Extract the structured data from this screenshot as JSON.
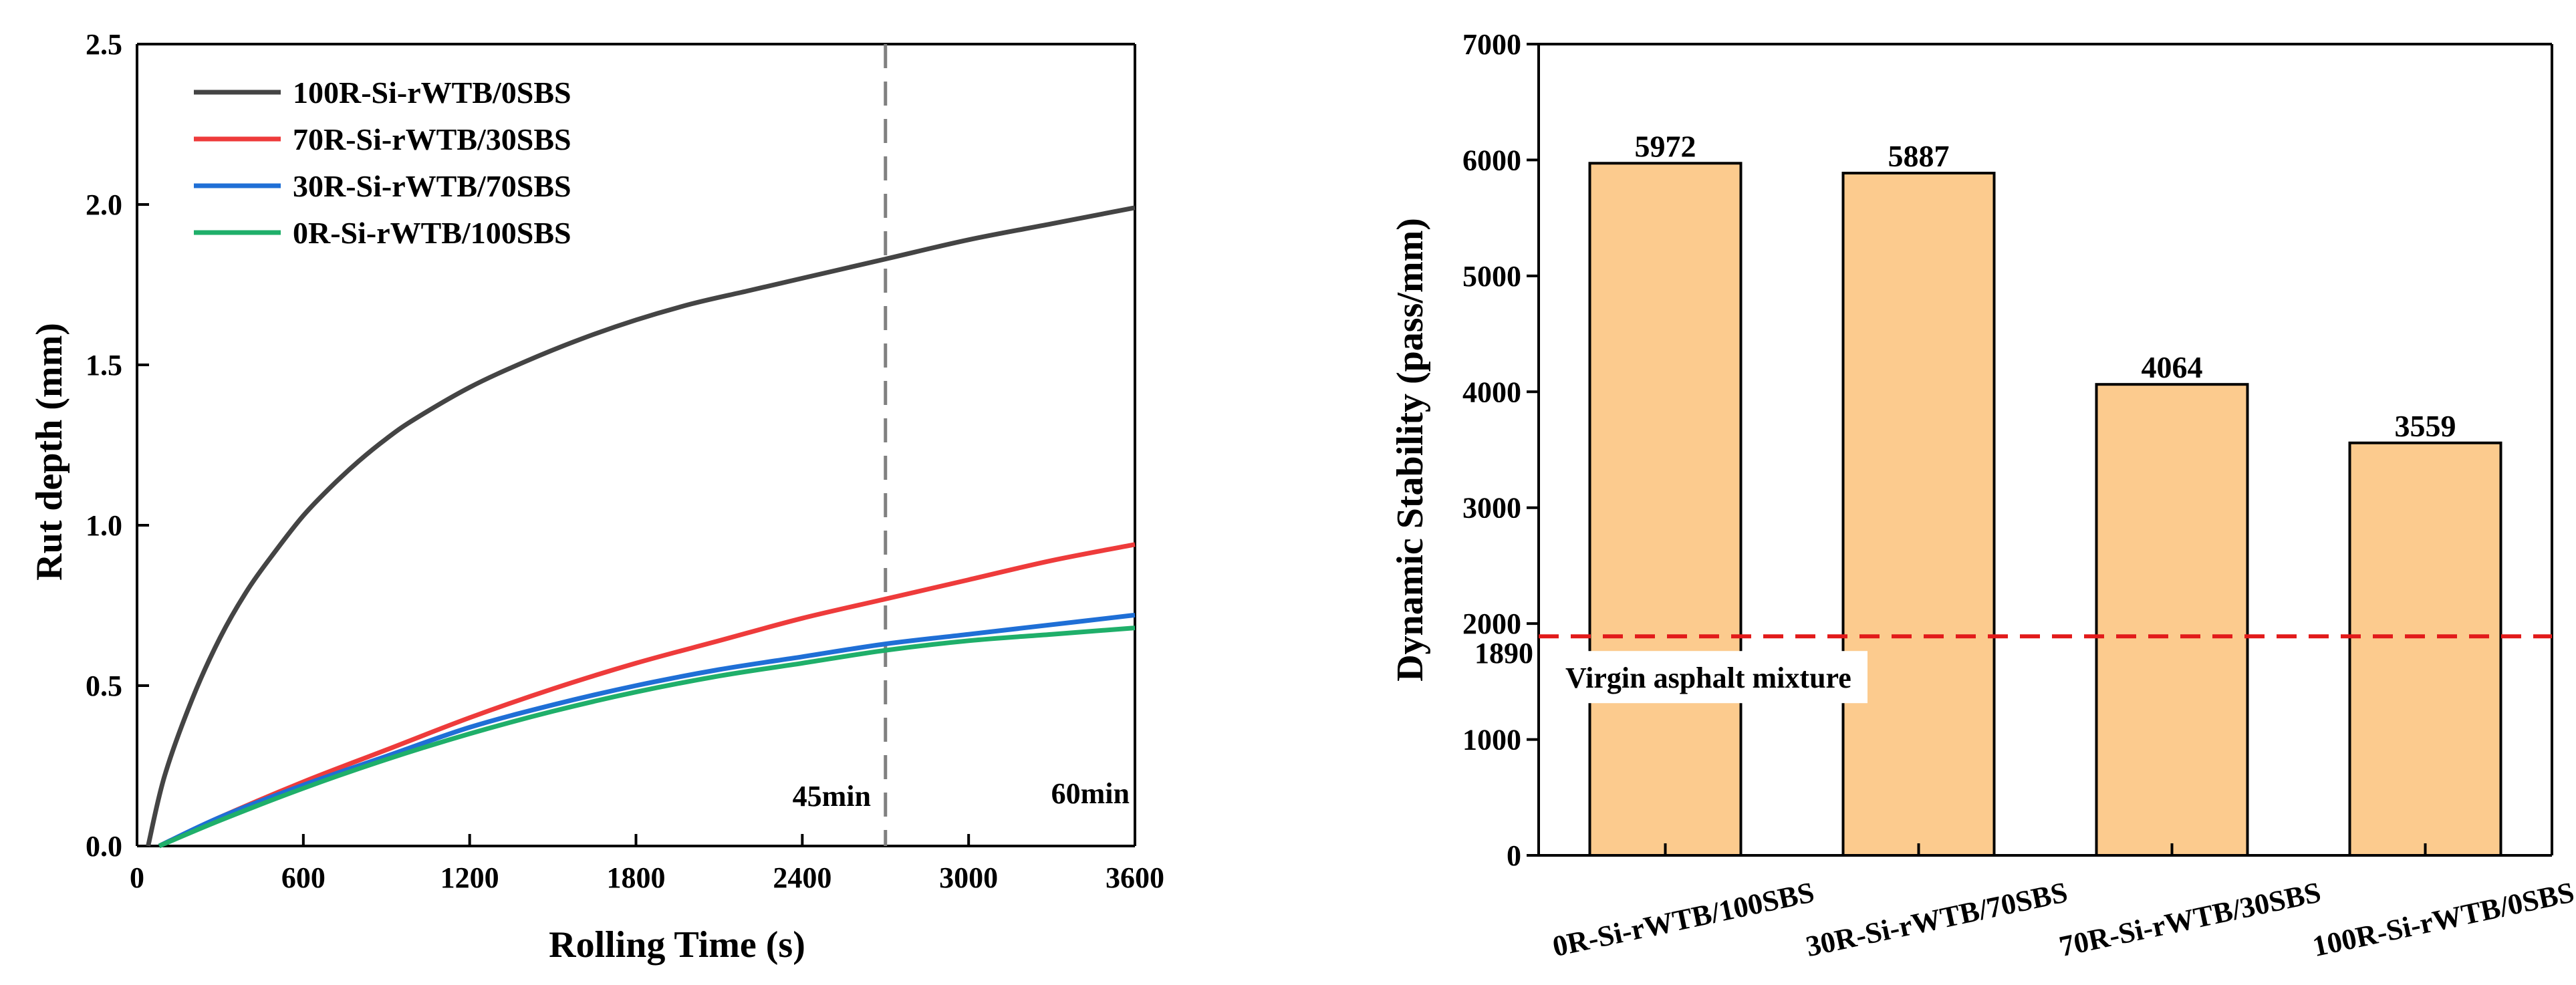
{
  "chart_data": [
    {
      "type": "line",
      "xlabel": "Rolling Time (s)",
      "ylabel": "Rut depth (mm)",
      "xlim": [
        0,
        3600
      ],
      "ylim": [
        0,
        2.5
      ],
      "xticks": [
        0,
        600,
        1200,
        1800,
        2400,
        3000,
        3600
      ],
      "xtick_labels": [
        "0",
        "600",
        "1200",
        "1800",
        "2400",
        "3000",
        "3600"
      ],
      "yticks": [
        0,
        0.5,
        1.0,
        1.5,
        2.0,
        2.5
      ],
      "ytick_labels": [
        "0.0",
        "0.5",
        "1.0",
        "1.5",
        "2.0",
        "2.5"
      ],
      "legend_position": "top-left",
      "vline": {
        "x": 2700,
        "style": "dashed",
        "color": "#808080"
      },
      "annotations": [
        "45min",
        "60min"
      ],
      "series": [
        {
          "name": "100R-Si-rWTB/0SBS",
          "color": "#444444",
          "x": [
            40,
            100,
            200,
            300,
            400,
            500,
            600,
            700,
            800,
            900,
            1000,
            1200,
            1400,
            1600,
            1800,
            2000,
            2200,
            2400,
            2700,
            3000,
            3300,
            3600
          ],
          "y": [
            0,
            0.22,
            0.46,
            0.65,
            0.8,
            0.92,
            1.03,
            1.12,
            1.2,
            1.27,
            1.33,
            1.43,
            1.51,
            1.58,
            1.64,
            1.69,
            1.73,
            1.77,
            1.83,
            1.89,
            1.94,
            1.99
          ]
        },
        {
          "name": "70R-Si-rWTB/30SBS",
          "color": "#EE3B3B",
          "x": [
            80,
            300,
            600,
            900,
            1200,
            1500,
            1800,
            2100,
            2400,
            2700,
            3000,
            3300,
            3600
          ],
          "y": [
            0,
            0.09,
            0.2,
            0.3,
            0.4,
            0.49,
            0.57,
            0.64,
            0.71,
            0.77,
            0.83,
            0.89,
            0.94
          ]
        },
        {
          "name": "30R-Si-rWTB/70SBS",
          "color": "#1F6FD6",
          "x": [
            80,
            300,
            600,
            900,
            1200,
            1500,
            1800,
            2100,
            2400,
            2700,
            3000,
            3300,
            3600
          ],
          "y": [
            0,
            0.09,
            0.19,
            0.28,
            0.37,
            0.44,
            0.5,
            0.55,
            0.59,
            0.63,
            0.66,
            0.69,
            0.72
          ]
        },
        {
          "name": "0R-Si-rWTB/100SBS",
          "color": "#1FAF6A",
          "x": [
            80,
            300,
            600,
            900,
            1200,
            1500,
            1800,
            2100,
            2400,
            2700,
            3000,
            3300,
            3600
          ],
          "y": [
            0,
            0.08,
            0.18,
            0.27,
            0.35,
            0.42,
            0.48,
            0.53,
            0.57,
            0.61,
            0.64,
            0.66,
            0.68
          ]
        }
      ]
    },
    {
      "type": "bar",
      "categories": [
        "0R-Si-rWTB/100SBS",
        "30R-Si-rWTB/70SBS",
        "70R-Si-rWTB/30SBS",
        "100R-Si-rWTB/0SBS"
      ],
      "values": [
        5972,
        5887,
        4064,
        3559
      ],
      "value_labels": [
        "5972",
        "5887",
        "4064",
        "3559"
      ],
      "ylabel": "Dynamic Stability (pass/mm)",
      "ylim": [
        0,
        7000
      ],
      "yticks": [
        0,
        1000,
        2000,
        3000,
        4000,
        5000,
        6000,
        7000
      ],
      "ytick_labels": [
        "0",
        "1000",
        "2000",
        "3000",
        "4000",
        "5000",
        "6000",
        "7000"
      ],
      "bar_color": "#FCCB8E",
      "reference_line": {
        "value": 1890,
        "label": "1890",
        "color": "#E21A1A",
        "style": "dashed",
        "annotation": "Virgin asphalt mixture"
      }
    }
  ]
}
